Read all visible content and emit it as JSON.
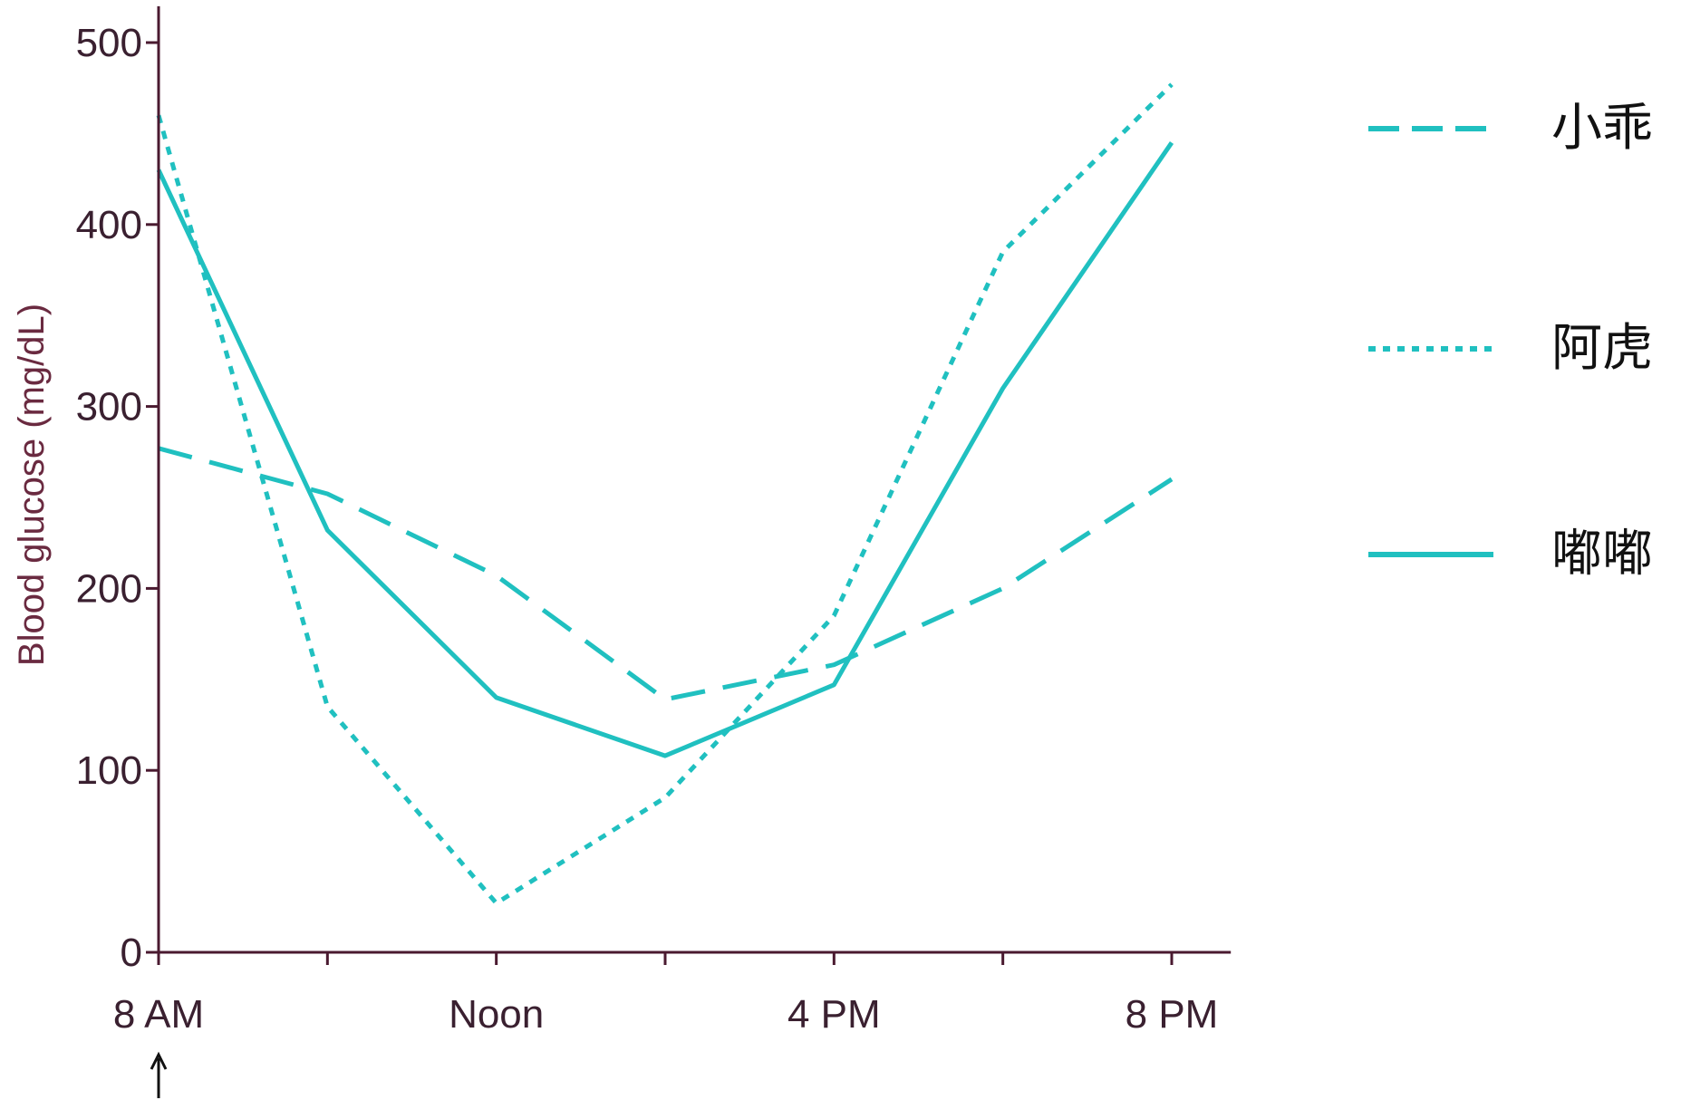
{
  "chart_data": {
    "type": "line",
    "title": "",
    "xlabel": "",
    "ylabel": "Blood glucose (mg/dL)",
    "x_hours": [
      8,
      10,
      12,
      14,
      16,
      18,
      20
    ],
    "x_tick_labels": [
      {
        "hour": 8,
        "label": "8 AM"
      },
      {
        "hour": 12,
        "label": "Noon"
      },
      {
        "hour": 16,
        "label": "4 PM"
      },
      {
        "hour": 20,
        "label": "8 PM"
      }
    ],
    "x_minor_ticks": [
      10,
      14,
      18
    ],
    "xlim": [
      8,
      20.7
    ],
    "ylim": [
      0,
      520
    ],
    "y_ticks": [
      0,
      100,
      200,
      300,
      400,
      500
    ],
    "grid": false,
    "legend_position": "right",
    "start_marker": "↑",
    "series": [
      {
        "name": "小乖",
        "style": "dashed",
        "x": [
          8,
          10,
          12,
          14,
          16,
          18,
          20
        ],
        "values": [
          277,
          252,
          207,
          139,
          158,
          200,
          260
        ]
      },
      {
        "name": "阿虎",
        "style": "dotted",
        "x": [
          8,
          10,
          12,
          14,
          16,
          18,
          20
        ],
        "values": [
          460,
          135,
          27,
          85,
          185,
          385,
          477
        ]
      },
      {
        "name": "嘟嘟",
        "style": "solid",
        "x": [
          8,
          10,
          12,
          14,
          16,
          18,
          20
        ],
        "values": [
          430,
          232,
          140,
          108,
          147,
          310,
          445
        ]
      }
    ],
    "colors": {
      "line": "#20c0c0",
      "axis": "#4a1a30"
    }
  }
}
